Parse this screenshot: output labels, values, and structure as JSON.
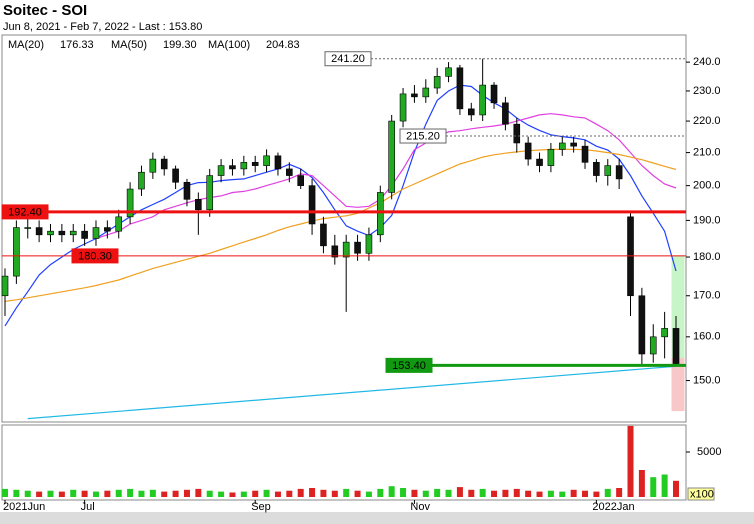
{
  "chart_data": {
    "type": "candlestick",
    "title": "Soitec - SOI",
    "subtitle": "Jun 8, 2021 - Feb 7, 2022 - Last : 153.80",
    "log_scale": true,
    "categories": [
      "2021Jun",
      null,
      null,
      null,
      null,
      null,
      null,
      "Jul",
      null,
      null,
      null,
      null,
      null,
      null,
      null,
      null,
      null,
      null,
      null,
      null,
      null,
      null,
      "Sep",
      null,
      null,
      null,
      null,
      null,
      null,
      null,
      null,
      null,
      null,
      null,
      null,
      null,
      "Nov",
      null,
      null,
      null,
      null,
      null,
      null,
      null,
      null,
      null,
      null,
      null,
      null,
      null,
      null,
      null,
      "2022Jan",
      null,
      null,
      null,
      null,
      null,
      null,
      null
    ],
    "open": [
      170,
      175,
      188,
      188,
      186,
      187,
      186,
      187,
      185,
      188,
      187,
      191,
      199,
      204,
      208,
      205,
      201,
      196,
      193,
      203,
      206,
      205,
      207,
      206,
      209,
      205,
      203,
      200,
      189,
      183,
      180,
      184,
      181,
      186,
      198,
      220,
      229,
      228,
      231,
      235,
      238,
      224,
      222,
      232,
      226,
      219,
      213,
      208,
      206,
      211,
      213,
      212,
      207,
      203,
      206,
      191,
      170,
      156,
      160,
      162
    ],
    "high": [
      177,
      190,
      191,
      190,
      189,
      189,
      189,
      189,
      190,
      190,
      193,
      201,
      206,
      210,
      209,
      206,
      202,
      198,
      205,
      208,
      208,
      209,
      209,
      211,
      210,
      207,
      205,
      202,
      191,
      186,
      186,
      186,
      188,
      200,
      222,
      231,
      232,
      234,
      238,
      240,
      239,
      226,
      241.2,
      233,
      228,
      221,
      215,
      210,
      213,
      215,
      215,
      214,
      208,
      208,
      208,
      192,
      172,
      163,
      166,
      165
    ],
    "low": [
      165,
      173,
      185,
      184,
      184,
      184,
      184,
      183,
      183,
      185,
      185,
      189,
      197,
      202,
      203,
      199,
      194,
      186,
      191,
      201,
      203,
      203,
      204,
      204,
      203,
      201,
      199,
      186,
      181,
      178,
      166,
      179,
      179,
      184,
      196,
      218,
      226,
      226,
      229,
      233,
      222,
      220,
      220,
      224,
      217,
      210,
      206,
      204,
      204,
      209,
      210,
      205,
      201,
      200,
      199,
      165,
      153.4,
      154,
      155,
      153.5
    ],
    "close": [
      175,
      188,
      188,
      186,
      187,
      186,
      187,
      185,
      188,
      187,
      191,
      199,
      204,
      208,
      205,
      201,
      196,
      193,
      203,
      206,
      205,
      207,
      206,
      209,
      205,
      203,
      200,
      189,
      183,
      180,
      184,
      181,
      186,
      198,
      220,
      229,
      228,
      231,
      235,
      238,
      224,
      222,
      232,
      226,
      219,
      213,
      208,
      206,
      211,
      213,
      212,
      207,
      203,
      206,
      202,
      170,
      156,
      160,
      162,
      153.8
    ],
    "up_color": "#22aa22",
    "down_color": "#111111",
    "ylim": [
      141.1,
      249.8
    ],
    "yticks": [
      {
        "value": 150,
        "label": "150.0"
      },
      {
        "value": 160,
        "label": "160.0"
      },
      {
        "value": 170,
        "label": "170.0"
      },
      {
        "value": 180,
        "label": "180.0"
      },
      {
        "value": 190,
        "label": "190.0"
      },
      {
        "value": 200,
        "label": "200.0"
      },
      {
        "value": 210,
        "label": "210.0"
      },
      {
        "value": 220,
        "label": "220.0"
      },
      {
        "value": 230,
        "label": "230.0"
      },
      {
        "value": 240,
        "label": "240.0"
      }
    ],
    "series": [
      {
        "name": "MA(20)",
        "color": "#2040ff",
        "last_label": "176.33",
        "values": [
          162.6,
          167,
          171,
          175.3,
          178,
          180,
          182,
          183.5,
          185,
          187,
          189,
          191,
          193,
          194.5,
          196,
          198,
          200,
          200.9,
          201,
          201.5,
          201.8,
          202,
          203,
          204,
          205,
          206.4,
          205,
          202.4,
          198,
          193,
          188.5,
          187,
          185.8,
          188,
          191.4,
          200,
          210.2,
          219,
          226.8,
          230,
          232,
          231.5,
          228.5,
          226,
          224,
          221,
          218.7,
          217,
          215.6,
          215,
          214.6,
          214,
          212,
          210.8,
          208,
          203,
          197,
          192,
          187,
          176.33
        ]
      },
      {
        "name": "MA(50)",
        "color": "#e040e0",
        "last_label": "199.30",
        "values": [
          null,
          null,
          null,
          null,
          null,
          null,
          null,
          null,
          185,
          186,
          187,
          189,
          190,
          191,
          193,
          194,
          195,
          195.9,
          196.5,
          197,
          198,
          198.3,
          199,
          200,
          201,
          202,
          203.5,
          203,
          200,
          197,
          194,
          193.7,
          194,
          196,
          200,
          205,
          210.9,
          213,
          215,
          216.5,
          216.9,
          217.5,
          218,
          218.4,
          219,
          220,
          221,
          222,
          222.4,
          222,
          221.4,
          221,
          219,
          216.9,
          214,
          210,
          206,
          203,
          200.5,
          199.3
        ]
      },
      {
        "name": "MA(100)",
        "color": "#f0a020",
        "last_label": "204.83",
        "values": [
          168.6,
          169,
          169.5,
          170,
          170.5,
          171,
          171.5,
          172,
          172.6,
          173.3,
          174,
          175,
          176,
          177,
          177.8,
          178.6,
          179.4,
          180.2,
          181,
          182,
          183,
          184,
          185,
          186,
          187.2,
          188.2,
          189,
          189.8,
          190.5,
          190.9,
          191.3,
          192,
          193.5,
          195,
          197,
          199,
          200.5,
          202,
          203.5,
          205,
          206.5,
          207.5,
          208.6,
          209.3,
          209.8,
          210.2,
          210.6,
          210.8,
          211,
          211,
          211,
          210.9,
          210.5,
          210,
          209.4,
          208.6,
          207.8,
          206.8,
          205.8,
          204.83
        ]
      }
    ],
    "trendline": {
      "color": "#22b8e6",
      "x": [
        2,
        59
      ],
      "values": [
        141.8,
        153.2
      ]
    },
    "levels": [
      {
        "value": 241.2,
        "label": "241.20",
        "color": "#666666",
        "style": "dashed"
      },
      {
        "value": 215.2,
        "label": "215.20",
        "color": "#666666",
        "style": "dashed"
      },
      {
        "value": 192.4,
        "label": "192.40",
        "color": "#ee1111",
        "style": "thick"
      },
      {
        "value": 180.3,
        "label": "180.30",
        "color": "#ee1111",
        "style": "thin"
      },
      {
        "value": 153.4,
        "label": "153.40",
        "color": "#119911",
        "style": "thick"
      }
    ],
    "zones": [
      {
        "from": 180.3,
        "to": 153.4,
        "color": "#c8f5c8"
      },
      {
        "from": 155,
        "to": 143.5,
        "color": "#f8c8c8"
      }
    ],
    "volume": {
      "values": [
        900,
        800,
        700,
        600,
        700,
        600,
        800,
        700,
        600,
        700,
        800,
        900,
        700,
        800,
        600,
        700,
        800,
        900,
        700,
        600,
        500,
        600,
        700,
        800,
        600,
        700,
        900,
        1000,
        800,
        700,
        900,
        700,
        600,
        900,
        1200,
        1000,
        800,
        700,
        900,
        800,
        1100,
        800,
        900,
        700,
        800,
        900,
        700,
        600,
        700,
        600,
        800,
        700,
        600,
        900,
        1000,
        7900,
        3000,
        2200,
        2500,
        1800
      ],
      "ylim": [
        0,
        8000
      ],
      "yticks": [
        5000
      ],
      "unit": "x100"
    }
  }
}
